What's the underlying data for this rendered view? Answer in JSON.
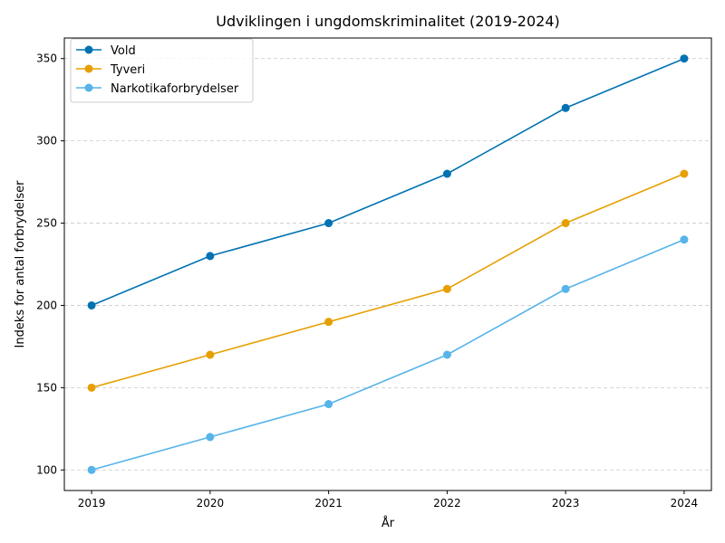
{
  "chart_data": {
    "type": "line",
    "title": "Udviklingen i ungdomskriminalitet (2019-2024)",
    "xlabel": "År",
    "ylabel": "Indeks for antal forbrydelser",
    "x": [
      "2019",
      "2020",
      "2021",
      "2022",
      "2023",
      "2024"
    ],
    "xlim": [
      2018.77,
      2024.23
    ],
    "ylim": [
      87.5,
      362.5
    ],
    "yticks": [
      100,
      150,
      200,
      250,
      300,
      350
    ],
    "grid": "y-dashed",
    "legend_position": "top-left",
    "series": [
      {
        "name": "Vold",
        "color": "#0072B2",
        "values": [
          200,
          230,
          250,
          280,
          320,
          350
        ]
      },
      {
        "name": "Tyveri",
        "color": "#E69F00",
        "values": [
          150,
          170,
          190,
          210,
          250,
          280
        ]
      },
      {
        "name": "Narkotikaforbrydelser",
        "color": "#56B4E9",
        "values": [
          100,
          120,
          140,
          170,
          210,
          240
        ]
      }
    ]
  }
}
